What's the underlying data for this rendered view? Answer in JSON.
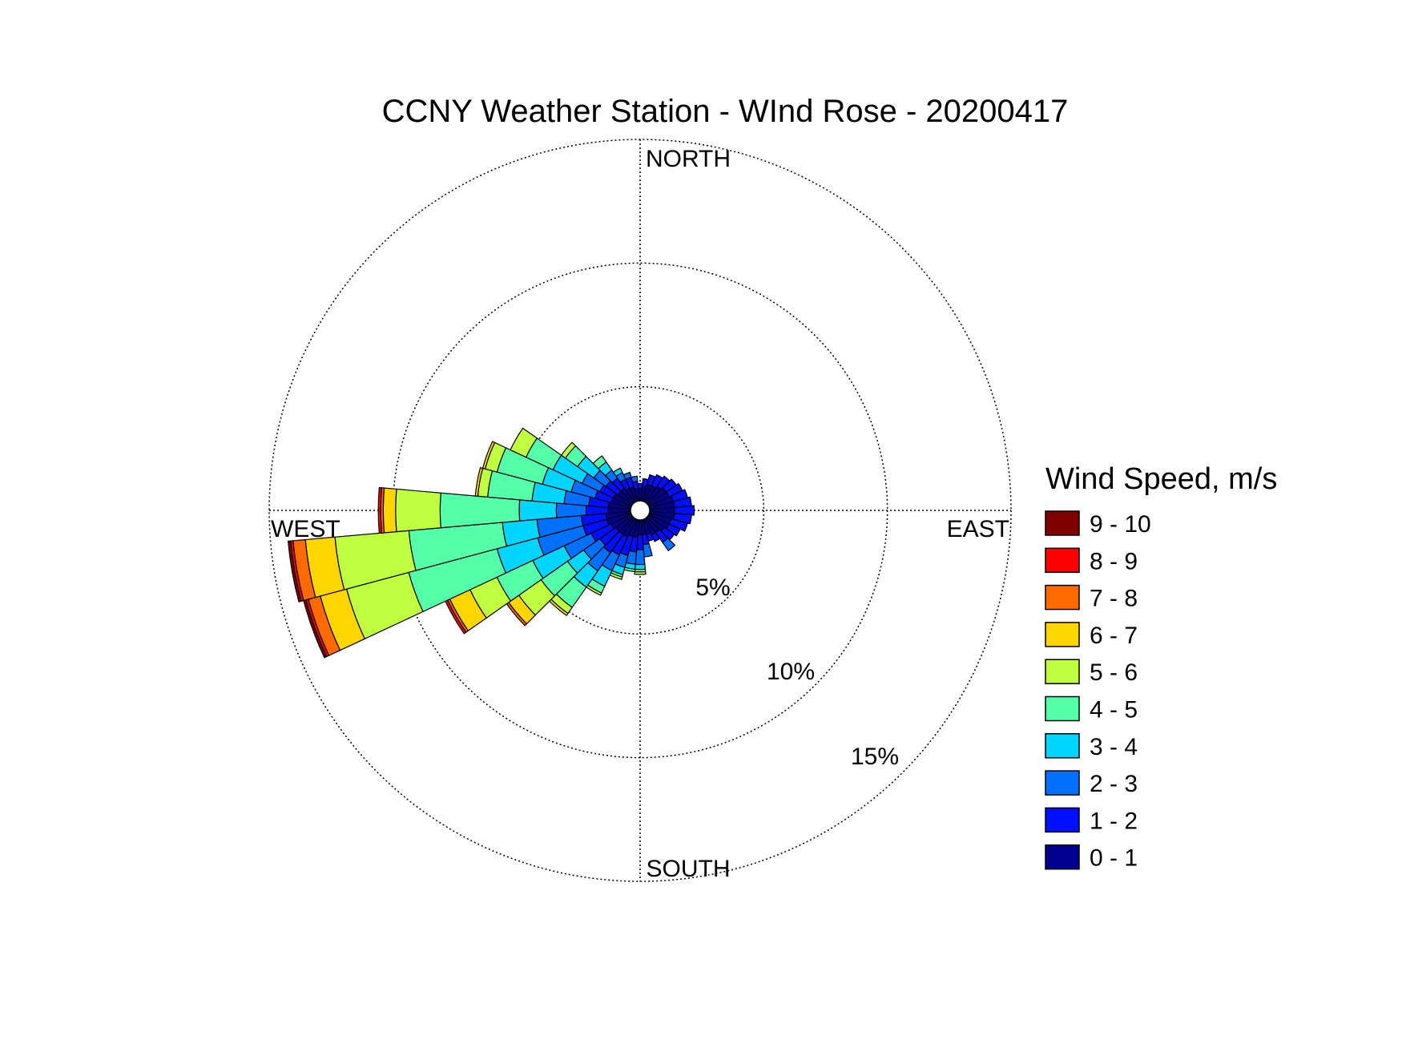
{
  "chart_data": {
    "type": "wind-rose",
    "title": "CCNY Weather Station - WInd Rose - 20200417",
    "direction_labels": {
      "north": "NORTH",
      "south": "SOUTH",
      "east": "EAST",
      "west": "WEST"
    },
    "radial_unit": "percent frequency",
    "ring_values": [
      5,
      10,
      15
    ],
    "ring_labels": [
      "5%",
      "10%",
      "15%"
    ],
    "rmax": 15,
    "sector_width_deg": 10,
    "legend": {
      "title": "Wind Speed, m/s",
      "placement": "right",
      "bins": [
        {
          "label": "9 - 10",
          "color": "#800000"
        },
        {
          "label": "8 - 9",
          "color": "#ff0000"
        },
        {
          "label": "7 - 8",
          "color": "#ff6a00"
        },
        {
          "label": "6 - 7",
          "color": "#ffd500"
        },
        {
          "label": "5 - 6",
          "color": "#c0ff40"
        },
        {
          "label": "4 - 5",
          "color": "#55ffaa"
        },
        {
          "label": "3 - 4",
          "color": "#00d5ff"
        },
        {
          "label": "2 - 3",
          "color": "#0070ff"
        },
        {
          "label": "1 - 2",
          "color": "#0010ff"
        },
        {
          "label": "0 - 1",
          "color": "#00008f"
        }
      ]
    },
    "speed_bins_ascending": [
      "0 - 1",
      "1 - 2",
      "2 - 3",
      "3 - 4",
      "4 - 5",
      "5 - 6",
      "6 - 7",
      "7 - 8",
      "8 - 9",
      "9 - 10"
    ],
    "sectors": [
      {
        "direction_deg": 0,
        "cumulative_percent": [
          0.5,
          0.7
        ]
      },
      {
        "direction_deg": 10,
        "cumulative_percent": [
          0.6,
          0.9
        ]
      },
      {
        "direction_deg": 20,
        "cumulative_percent": [
          0.7,
          1.1
        ]
      },
      {
        "direction_deg": 30,
        "cumulative_percent": [
          0.7,
          1.2
        ]
      },
      {
        "direction_deg": 40,
        "cumulative_percent": [
          0.8,
          1.3
        ]
      },
      {
        "direction_deg": 50,
        "cumulative_percent": [
          0.9,
          1.4
        ]
      },
      {
        "direction_deg": 60,
        "cumulative_percent": [
          0.9,
          1.5
        ]
      },
      {
        "direction_deg": 70,
        "cumulative_percent": [
          1.0,
          1.6
        ]
      },
      {
        "direction_deg": 80,
        "cumulative_percent": [
          1.0,
          1.7
        ]
      },
      {
        "direction_deg": 90,
        "cumulative_percent": [
          1.0,
          1.8
        ]
      },
      {
        "direction_deg": 100,
        "cumulative_percent": [
          1.0,
          1.7
        ]
      },
      {
        "direction_deg": 110,
        "cumulative_percent": [
          0.9,
          1.6
        ]
      },
      {
        "direction_deg": 120,
        "cumulative_percent": [
          0.9,
          1.4
        ]
      },
      {
        "direction_deg": 130,
        "cumulative_percent": [
          0.8,
          1.3
        ]
      },
      {
        "direction_deg": 140,
        "cumulative_percent": [
          0.7,
          1.2,
          1.6
        ]
      },
      {
        "direction_deg": 150,
        "cumulative_percent": [
          0.7,
          1.0
        ]
      },
      {
        "direction_deg": 160,
        "cumulative_percent": [
          0.6,
          0.9
        ]
      },
      {
        "direction_deg": 170,
        "cumulative_percent": [
          0.6,
          1.0,
          1.5
        ]
      },
      {
        "direction_deg": 180,
        "cumulative_percent": [
          0.6,
          1.2,
          1.8,
          2.0,
          2.1,
          2.2
        ]
      },
      {
        "direction_deg": 190,
        "cumulative_percent": [
          0.7,
          1.3,
          1.8,
          2.0,
          2.1
        ]
      },
      {
        "direction_deg": 200,
        "cumulative_percent": [
          0.7,
          1.5,
          2.0,
          2.3,
          2.4,
          2.5
        ]
      },
      {
        "direction_deg": 210,
        "cumulative_percent": [
          0.8,
          1.6,
          2.3,
          3.0,
          3.3,
          3.4
        ]
      },
      {
        "direction_deg": 220,
        "cumulative_percent": [
          0.8,
          1.7,
          2.6,
          3.4,
          4.4,
          4.7,
          4.8
        ]
      },
      {
        "direction_deg": 230,
        "cumulative_percent": [
          0.8,
          1.6,
          2.4,
          3.2,
          4.5,
          5.6,
          6.1,
          6.2
        ]
      },
      {
        "direction_deg": 240,
        "cumulative_percent": [
          0.9,
          1.8,
          3.0,
          4.4,
          6.0,
          7.2,
          8.1,
          8.2,
          8.3
        ]
      },
      {
        "direction_deg": 250,
        "cumulative_percent": [
          1.0,
          2.0,
          3.9,
          5.6,
          9.3,
          11.9,
          13.0,
          13.5,
          13.6,
          13.7
        ]
      },
      {
        "direction_deg": 260,
        "cumulative_percent": [
          1.0,
          2.0,
          3.8,
          5.2,
          9.0,
          12.0,
          13.2,
          13.7,
          13.8,
          13.9
        ]
      },
      {
        "direction_deg": 270,
        "cumulative_percent": [
          0.9,
          1.8,
          3.0,
          4.5,
          7.7,
          9.5,
          10.0,
          10.1,
          10.2
        ]
      },
      {
        "direction_deg": 280,
        "cumulative_percent": [
          0.9,
          1.7,
          2.7,
          4.0,
          5.8,
          6.2,
          6.3
        ]
      },
      {
        "direction_deg": 290,
        "cumulative_percent": [
          0.8,
          1.5,
          2.5,
          3.7,
          5.6,
          6.1,
          6.2
        ]
      },
      {
        "direction_deg": 300,
        "cumulative_percent": [
          0.8,
          1.4,
          2.2,
          3.5,
          4.7,
          5.4
        ]
      },
      {
        "direction_deg": 310,
        "cumulative_percent": [
          0.7,
          1.3,
          1.9,
          2.7,
          3.3,
          3.5
        ]
      },
      {
        "direction_deg": 320,
        "cumulative_percent": [
          0.7,
          1.2,
          1.6,
          2.0,
          2.3
        ]
      },
      {
        "direction_deg": 330,
        "cumulative_percent": [
          0.6,
          1.0,
          1.3,
          1.5
        ]
      },
      {
        "direction_deg": 340,
        "cumulative_percent": [
          0.6,
          1.0,
          1.2
        ]
      },
      {
        "direction_deg": 350,
        "cumulative_percent": [
          0.5,
          0.8,
          1.0
        ]
      }
    ],
    "grid": true
  }
}
